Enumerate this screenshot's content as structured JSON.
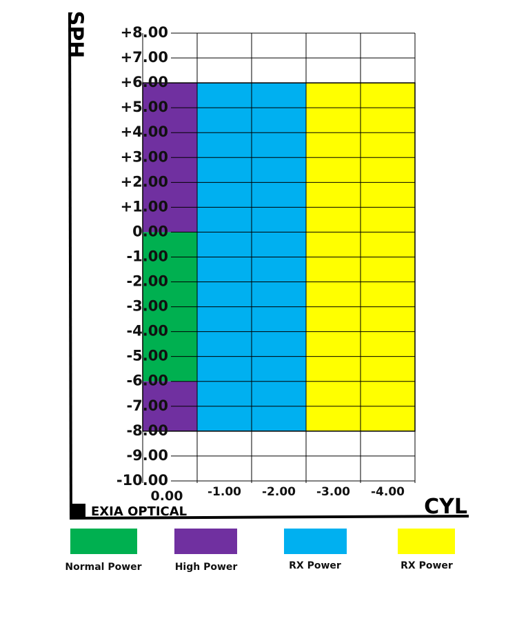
{
  "chart_data": {
    "type": "heatmap",
    "title": "",
    "xlabel": "CYL",
    "ylabel": "SPH",
    "x_ticks": [
      "0.00",
      "-1.00",
      "-2.00",
      "-3.00",
      "-4.00"
    ],
    "y_ticks": [
      "+8.00",
      "+7.00",
      "+6.00",
      "+5.00",
      "+4.00",
      "+3.00",
      "+2.00",
      "+1.00",
      "0.00",
      "-1.00",
      "-2.00",
      "-3.00",
      "-4.00",
      "-5.00",
      "-6.00",
      "-7.00",
      "-8.00",
      "-9.00",
      "-10.00"
    ],
    "xlim": [
      0.5,
      -4.5
    ],
    "ylim": [
      -11,
      8
    ],
    "grid": true,
    "legend_position": "bottom",
    "series": [
      {
        "name": "Normal Power",
        "color": "#00b050",
        "regions": [
          {
            "cyl": [
              0.5,
              -0.5
            ],
            "sph": [
              0,
              -6
            ]
          }
        ]
      },
      {
        "name": "High Power",
        "color": "#7030a0",
        "regions": [
          {
            "cyl": [
              0.5,
              -0.5
            ],
            "sph": [
              6,
              0
            ]
          },
          {
            "cyl": [
              0.5,
              -0.5
            ],
            "sph": [
              -6,
              -8
            ]
          }
        ]
      },
      {
        "name": "RX Power",
        "color": "#00b0f0",
        "regions": [
          {
            "cyl": [
              -0.5,
              -2.5
            ],
            "sph": [
              6,
              -8
            ]
          }
        ]
      },
      {
        "name": "RX Power",
        "color": "#ffff00",
        "regions": [
          {
            "cyl": [
              -2.5,
              -4.5
            ],
            "sph": [
              6,
              -8
            ]
          }
        ]
      }
    ]
  },
  "brand": {
    "label": "EXIA OPTICAL"
  }
}
